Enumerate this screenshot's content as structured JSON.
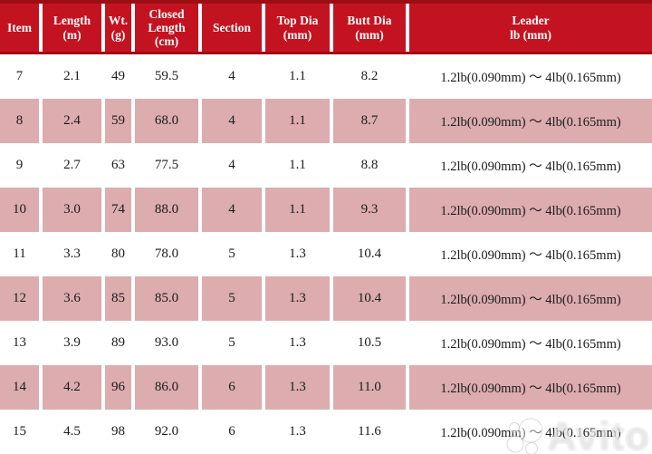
{
  "chart_data": {
    "type": "table",
    "title": "Rod specification table",
    "columns": [
      {
        "key": "item",
        "label": "Item",
        "lines": [
          "Item"
        ]
      },
      {
        "key": "length_m",
        "label": "Length (m)",
        "lines": [
          "Length",
          "(m)"
        ]
      },
      {
        "key": "wt_g",
        "label": "Wt. (g)",
        "lines": [
          "Wt.",
          "(g)"
        ]
      },
      {
        "key": "closed_length",
        "label": "Closed Length (cm)",
        "lines": [
          "Closed",
          "Length",
          "(cm)"
        ]
      },
      {
        "key": "section",
        "label": "Section",
        "lines": [
          "Section"
        ]
      },
      {
        "key": "top_dia",
        "label": "Top Dia (mm)",
        "lines": [
          "Top Dia",
          "(mm)"
        ]
      },
      {
        "key": "butt_dia",
        "label": "Butt Dia (mm)",
        "lines": [
          "Butt Dia",
          "(mm)"
        ]
      },
      {
        "key": "leader",
        "label": "Leader lb (mm)",
        "lines": [
          "Leader",
          "lb (mm)"
        ]
      }
    ],
    "rows": [
      [
        "7",
        "2.1",
        "49",
        "59.5",
        "4",
        "1.1",
        "8.2",
        "1.2lb(0.090mm) ～ 4lb(0.165mm)"
      ],
      [
        "8",
        "2.4",
        "59",
        "68.0",
        "4",
        "1.1",
        "8.7",
        "1.2lb(0.090mm) ～ 4lb(0.165mm)"
      ],
      [
        "9",
        "2.7",
        "63",
        "77.5",
        "4",
        "1.1",
        "8.8",
        "1.2lb(0.090mm) ～ 4lb(0.165mm)"
      ],
      [
        "10",
        "3.0",
        "74",
        "88.0",
        "4",
        "1.1",
        "9.3",
        "1.2lb(0.090mm) ～ 4lb(0.165mm)"
      ],
      [
        "11",
        "3.3",
        "80",
        "78.0",
        "5",
        "1.3",
        "10.4",
        "1.2lb(0.090mm) ～ 4lb(0.165mm)"
      ],
      [
        "12",
        "3.6",
        "85",
        "85.0",
        "5",
        "1.3",
        "10.4",
        "1.2lb(0.090mm) ～ 4lb(0.165mm)"
      ],
      [
        "13",
        "3.9",
        "89",
        "93.0",
        "5",
        "1.3",
        "10.5",
        "1.2lb(0.090mm) ～ 4lb(0.165mm)"
      ],
      [
        "14",
        "4.2",
        "96",
        "86.0",
        "6",
        "1.3",
        "11.0",
        "1.2lb(0.090mm) ～ 4lb(0.165mm)"
      ],
      [
        "15",
        "4.5",
        "98",
        "92.0",
        "6",
        "1.3",
        "11.6",
        "1.2lb(0.090mm) ～ 4lb(0.165mm)"
      ]
    ]
  },
  "watermark": {
    "text": "Avito"
  },
  "colors": {
    "header_red": "#c41320",
    "strip_red": "#9d0e14",
    "row_pink": "#dcacae",
    "row_white": "#ffffff",
    "header_text": "#ffffff",
    "body_text": "#1b1b1b"
  }
}
